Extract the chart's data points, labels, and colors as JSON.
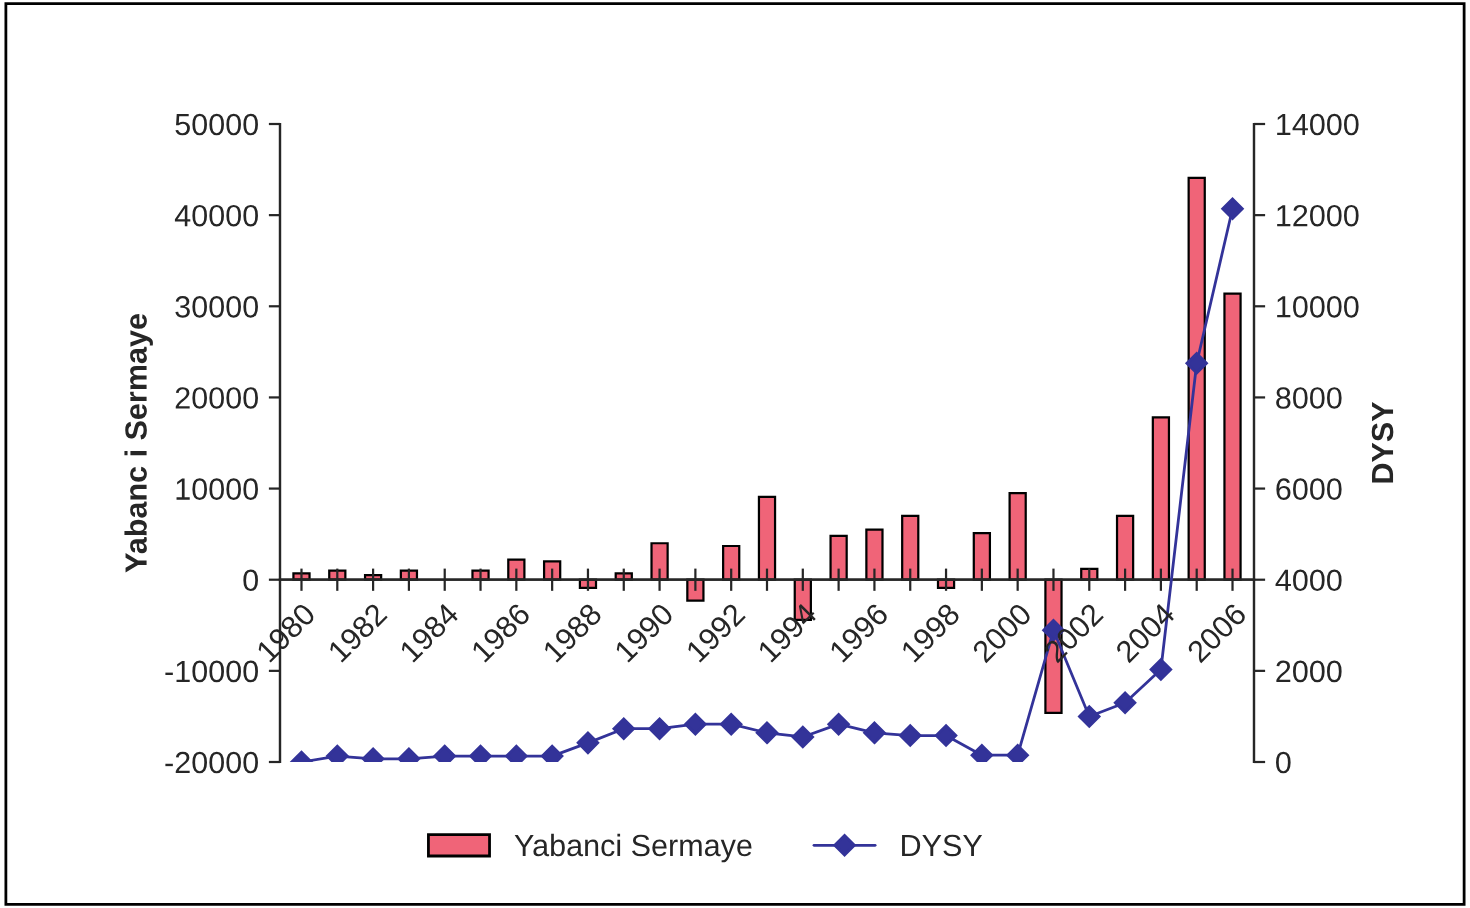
{
  "chart_data": {
    "type": "bar",
    "categories": [
      "1980",
      null,
      "1982",
      null,
      "1984",
      null,
      "1986",
      null,
      "1988",
      null,
      "1990",
      null,
      "1992",
      null,
      "1994",
      null,
      "1996",
      null,
      "1998",
      null,
      "2000",
      null,
      "2002",
      null,
      "2004",
      null,
      "2006"
    ],
    "series": [
      {
        "name": "Yabanci Sermaye",
        "color": "#f06478",
        "values": [
          700,
          1000,
          500,
          1000,
          null,
          1000,
          2200,
          2000,
          -900,
          700,
          4000,
          -2300,
          3700,
          9100,
          -4400,
          4800,
          5500,
          7000,
          -900,
          5100,
          9500,
          -14600,
          1200,
          7000,
          17800,
          44100,
          31400
        ]
      },
      {
        "name": "DYSY",
        "type": "line",
        "axis": "y2",
        "color": "#333399",
        "marker": "diamond",
        "line_style": "solid",
        "values": [
          0,
          130,
          70,
          70,
          130,
          130,
          130,
          130,
          420,
          730,
          730,
          830,
          830,
          640,
          550,
          830,
          640,
          580,
          580,
          150,
          150,
          2890,
          1000,
          1300,
          2030,
          8750,
          12140
        ]
      }
    ],
    "ylabel": "Yabanc i Sermaye",
    "y2label": "DYSY",
    "ylim": [
      -20000,
      50000
    ],
    "yticks": [
      -20000,
      -10000,
      0,
      10000,
      20000,
      30000,
      40000,
      50000
    ],
    "y2lim": [
      0,
      14000
    ],
    "y2ticks": [
      0,
      2000,
      4000,
      6000,
      8000,
      10000,
      12000,
      14000
    ],
    "grid": false,
    "legend": "bottom"
  }
}
